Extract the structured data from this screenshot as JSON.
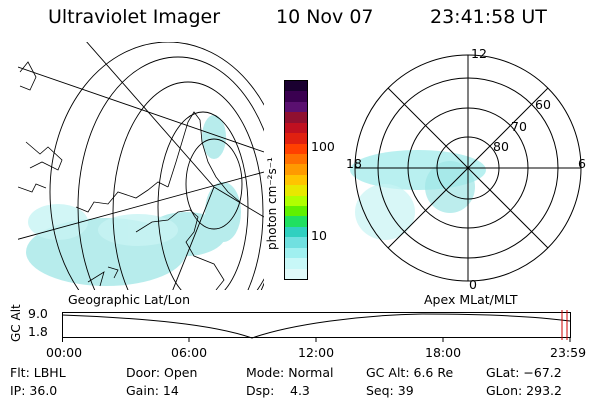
{
  "header": {
    "instrument": "Ultraviolet Imager",
    "date": "10 Nov 07",
    "time": "23:41:58 UT"
  },
  "colorbar": {
    "unit_label": "photon cm⁻²s⁻¹",
    "ticks": [
      "100",
      "10"
    ],
    "colors": [
      "#1a0030",
      "#3a0050",
      "#5a1070",
      "#901030",
      "#c01020",
      "#e02010",
      "#ff4000",
      "#ff7000",
      "#ff9a00",
      "#ffc400",
      "#e8e800",
      "#b0ff00",
      "#60f000",
      "#20e060",
      "#30d0c0",
      "#70e0e0",
      "#a0f0f0",
      "#c8f8f8",
      "#e0fafa"
    ]
  },
  "map_left": {
    "caption": "Geographic Lat/Lon"
  },
  "map_right": {
    "caption": "Apex MLat/MLT",
    "mlt_labels": [
      "12",
      "6",
      "18",
      "0"
    ],
    "lat_labels": [
      "60",
      "70",
      "80"
    ]
  },
  "altitude_plot": {
    "ylabel": "GC Alt",
    "yticks": [
      "9.0",
      "1.8"
    ],
    "xticks": [
      "00:00",
      "06:00",
      "12:00",
      "18:00",
      "23:59"
    ]
  },
  "footer": {
    "row1": {
      "flt": "Flt: LBHL",
      "door": "Door: Open",
      "mode": "Mode: Normal",
      "gcalt": "GC Alt: 6.6 Re",
      "glat": "GLat: −67.2"
    },
    "row2": {
      "ip": "IP: 36.0",
      "gain": "Gain: 14",
      "dsp_label": "Dsp:",
      "dsp_value": "4.3",
      "seq": "Seq: 39",
      "glon": "GLon: 293.2"
    }
  }
}
